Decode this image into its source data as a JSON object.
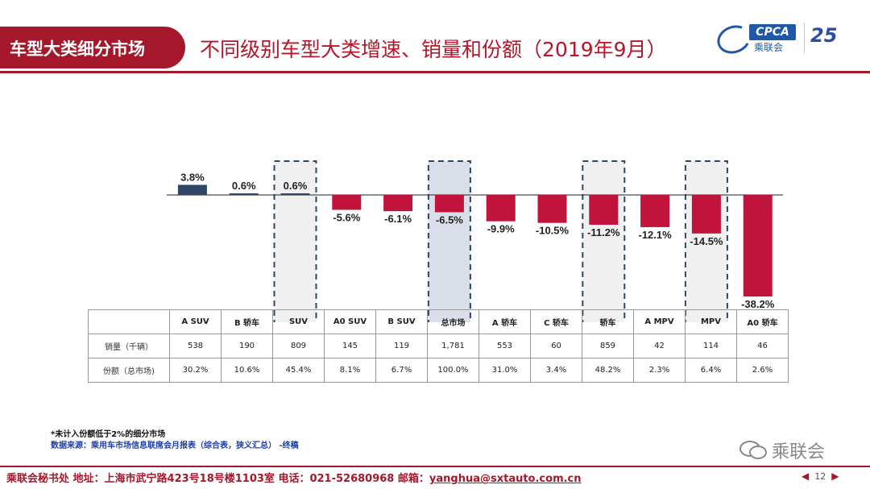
{
  "header": {
    "badge": "车型大类细分市场",
    "title": "不同级别车型大类增速、销量和份额（2019年9月）"
  },
  "logo": {
    "cpca": "CPCA",
    "cn": "乘联会",
    "anniversary": "25"
  },
  "chart_data": {
    "type": "bar",
    "categories": [
      "A SUV",
      "B 轿车",
      "SUV",
      "A0 SUV",
      "B SUV",
      "总市场",
      "A 轿车",
      "C 轿车",
      "轿车",
      "A MPV",
      "MPV",
      "A0 轿车"
    ],
    "values": [
      3.8,
      0.6,
      0.6,
      -5.6,
      -6.1,
      -6.5,
      -9.9,
      -10.5,
      -11.2,
      -12.1,
      -14.5,
      -38.2
    ],
    "value_labels": [
      "3.8%",
      "0.6%",
      "0.6%",
      "-5.6%",
      "-6.1%",
      "-6.5%",
      "-9.9%",
      "-10.5%",
      "-11.2%",
      "-12.1%",
      "-14.5%",
      "-38.2%"
    ],
    "highlighted": [
      "SUV",
      "总市场",
      "轿车",
      "MPV"
    ],
    "colors": {
      "positive": "#2e4666",
      "negative": "#c0143c",
      "highlight_box": "#2e4666",
      "total_fill": "#d9dee8"
    },
    "grid": false,
    "legend": "none"
  },
  "table": {
    "rows": [
      {
        "label": "销量（千辆）",
        "values": [
          "538",
          "190",
          "809",
          "145",
          "119",
          "1,781",
          "553",
          "60",
          "859",
          "42",
          "114",
          "46"
        ]
      },
      {
        "label": "份额（总市场)",
        "values": [
          "30.2%",
          "10.6%",
          "45.4%",
          "8.1%",
          "6.7%",
          "100.0%",
          "31.0%",
          "3.4%",
          "48.2%",
          "2.3%",
          "6.4%",
          "2.6%"
        ]
      }
    ]
  },
  "notes": {
    "line1": "*未计入份额低于2%的细分市场",
    "line2": "数据来源：乘用车市场信息联席会月报表（综合表，狭义汇总）  -终稿"
  },
  "wechat": {
    "name": "乘联会"
  },
  "footer": {
    "text": "乘联会秘书处   地址：上海市武宁路423号18号楼1103室  电话：021-52680968   邮箱：",
    "email": "yanghua@sxtauto.com.cn",
    "page": "12",
    "prev_icon": "◀",
    "next_icon": "▶"
  }
}
